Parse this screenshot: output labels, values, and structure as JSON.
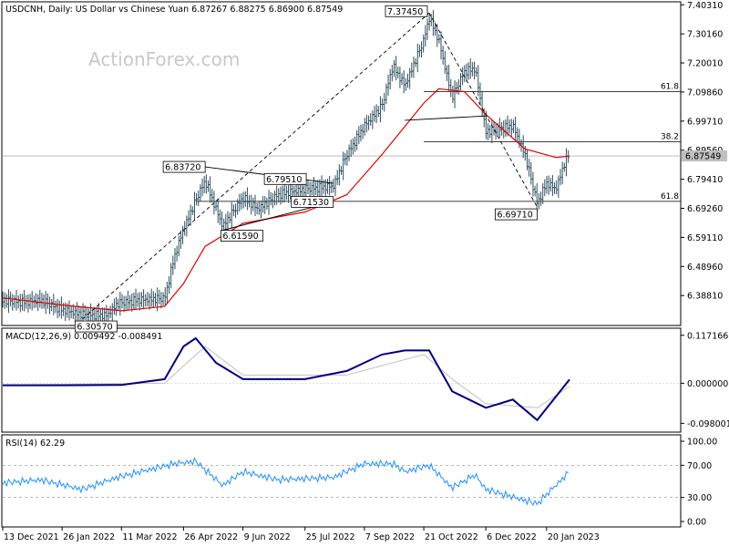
{
  "watermark": "ActionForex.com",
  "chart_data": [
    {
      "panel": "price",
      "type": "candlestick",
      "title": "USDCNH, Daily:  US Dollar vs Chinese Yuan  6.87267 6.88275 6.86900 6.87549",
      "ylim": [
        6.29,
        7.404
      ],
      "y_ticks": [
        "7.40310",
        "7.30160",
        "7.20010",
        "7.09860",
        "6.99710",
        "6.89560",
        "6.79410",
        "6.69260",
        "6.59110",
        "6.48960",
        "6.38810"
      ],
      "last_price": "6.87549",
      "x_ticks": [
        {
          "date": "2021-12-13",
          "label": "13 Dec 2021"
        },
        {
          "date": "2022-01-26",
          "label": "26 Jan 2022"
        },
        {
          "date": "2022-03-11",
          "label": "11 Mar 2022"
        },
        {
          "date": "2022-04-26",
          "label": "26 Apr 2022"
        },
        {
          "date": "2022-06-09",
          "label": "9 Jun 2022"
        },
        {
          "date": "2022-07-25",
          "label": "25 Jul 2022"
        },
        {
          "date": "2022-09-07",
          "label": "7 Sep 2022"
        },
        {
          "date": "2022-10-21",
          "label": "21 Oct 2022"
        },
        {
          "date": "2022-12-06",
          "label": "6 Dec 2022"
        },
        {
          "date": "2023-01-20",
          "label": "20 Jan 2023"
        }
      ],
      "close_series": [
        {
          "date": "2021-12-13",
          "value": 6.372
        },
        {
          "date": "2021-12-30",
          "value": 6.364
        },
        {
          "date": "2022-01-10",
          "value": 6.372
        },
        {
          "date": "2022-01-26",
          "value": 6.338
        },
        {
          "date": "2022-02-10",
          "value": 6.322
        },
        {
          "date": "2022-02-28",
          "value": 6.318
        },
        {
          "date": "2022-03-08",
          "value": 6.36
        },
        {
          "date": "2022-03-23",
          "value": 6.372
        },
        {
          "date": "2022-04-12",
          "value": 6.378
        },
        {
          "date": "2022-04-19",
          "value": 6.52
        },
        {
          "date": "2022-04-26",
          "value": 6.62
        },
        {
          "date": "2022-05-05",
          "value": 6.72
        },
        {
          "date": "2022-05-12",
          "value": 6.79
        },
        {
          "date": "2022-05-20",
          "value": 6.69
        },
        {
          "date": "2022-05-25",
          "value": 6.63
        },
        {
          "date": "2022-06-09",
          "value": 6.73
        },
        {
          "date": "2022-06-20",
          "value": 6.69
        },
        {
          "date": "2022-07-05",
          "value": 6.74
        },
        {
          "date": "2022-07-25",
          "value": 6.76
        },
        {
          "date": "2022-08-15",
          "value": 6.77
        },
        {
          "date": "2022-08-25",
          "value": 6.88
        },
        {
          "date": "2022-09-07",
          "value": 6.98
        },
        {
          "date": "2022-09-20",
          "value": 7.05
        },
        {
          "date": "2022-09-28",
          "value": 7.19
        },
        {
          "date": "2022-10-07",
          "value": 7.12
        },
        {
          "date": "2022-10-21",
          "value": 7.28
        },
        {
          "date": "2022-10-25",
          "value": 7.36
        },
        {
          "date": "2022-11-01",
          "value": 7.28
        },
        {
          "date": "2022-11-11",
          "value": 7.08
        },
        {
          "date": "2022-11-20",
          "value": 7.17
        },
        {
          "date": "2022-11-28",
          "value": 7.18
        },
        {
          "date": "2022-12-06",
          "value": 6.96
        },
        {
          "date": "2022-12-16",
          "value": 6.97
        },
        {
          "date": "2022-12-26",
          "value": 6.98
        },
        {
          "date": "2023-01-04",
          "value": 6.88
        },
        {
          "date": "2023-01-13",
          "value": 6.71
        },
        {
          "date": "2023-01-20",
          "value": 6.78
        },
        {
          "date": "2023-01-27",
          "value": 6.76
        },
        {
          "date": "2023-02-03",
          "value": 6.86
        },
        {
          "date": "2023-02-06",
          "value": 6.875
        }
      ],
      "ma_series": [
        {
          "date": "2021-12-13",
          "value": 6.38
        },
        {
          "date": "2022-01-26",
          "value": 6.355
        },
        {
          "date": "2022-03-11",
          "value": 6.335
        },
        {
          "date": "2022-04-12",
          "value": 6.35
        },
        {
          "date": "2022-04-26",
          "value": 6.43
        },
        {
          "date": "2022-05-12",
          "value": 6.56
        },
        {
          "date": "2022-06-09",
          "value": 6.64
        },
        {
          "date": "2022-07-25",
          "value": 6.68
        },
        {
          "date": "2022-08-25",
          "value": 6.74
        },
        {
          "date": "2022-09-20",
          "value": 6.88
        },
        {
          "date": "2022-10-21",
          "value": 7.06
        },
        {
          "date": "2022-11-01",
          "value": 7.11
        },
        {
          "date": "2022-11-20",
          "value": 7.1
        },
        {
          "date": "2022-12-06",
          "value": 7.02
        },
        {
          "date": "2023-01-04",
          "value": 6.9
        },
        {
          "date": "2023-01-27",
          "value": 6.87
        },
        {
          "date": "2023-02-06",
          "value": 6.875
        }
      ],
      "annotations": [
        {
          "label": "7.37450",
          "date": "2022-10-25",
          "value": 7.3745
        },
        {
          "label": "6.83720",
          "date": "2022-05-12",
          "value": 6.8372
        },
        {
          "label": "6.79510",
          "date": "2022-07-05",
          "value": 6.7951
        },
        {
          "label": "6.71530",
          "date": "2022-07-25",
          "value": 6.7153
        },
        {
          "label": "6.61590",
          "date": "2022-05-25",
          "value": 6.6159
        },
        {
          "label": "6.69710",
          "date": "2023-01-13",
          "value": 6.6971
        },
        {
          "label": "6.30570",
          "date": "2022-02-10",
          "value": 6.3057
        }
      ],
      "fib_levels": [
        {
          "label": "61.8",
          "value": 7.1
        },
        {
          "label": "38.2",
          "value": 6.925
        },
        {
          "label": "61.8",
          "value": 6.717
        }
      ],
      "colors": {
        "candle": "#2f4f5f",
        "ma": "#e00000",
        "lines": "#000000",
        "last_price_bg": "#c0c0c0"
      }
    },
    {
      "panel": "macd",
      "type": "line",
      "title": "MACD(12,26,9) 0.009492 -0.008491",
      "ylim": [
        -0.115,
        0.13
      ],
      "y_ticks": [
        "0.117166",
        "0.000000",
        "-0.098001"
      ],
      "series": [
        {
          "values_by_date": [
            {
              "date": "2021-12-13",
              "value": -0.005
            },
            {
              "date": "2022-01-26",
              "value": -0.005
            },
            {
              "date": "2022-03-11",
              "value": -0.004
            },
            {
              "date": "2022-04-12",
              "value": 0.01
            },
            {
              "date": "2022-04-26",
              "value": 0.09
            },
            {
              "date": "2022-05-05",
              "value": 0.11
            },
            {
              "date": "2022-05-20",
              "value": 0.05
            },
            {
              "date": "2022-06-09",
              "value": 0.01
            },
            {
              "date": "2022-07-25",
              "value": 0.01
            },
            {
              "date": "2022-08-25",
              "value": 0.03
            },
            {
              "date": "2022-09-20",
              "value": 0.07
            },
            {
              "date": "2022-10-07",
              "value": 0.08
            },
            {
              "date": "2022-10-25",
              "value": 0.08
            },
            {
              "date": "2022-11-11",
              "value": -0.02
            },
            {
              "date": "2022-12-06",
              "value": -0.06
            },
            {
              "date": "2022-12-26",
              "value": -0.04
            },
            {
              "date": "2023-01-13",
              "value": -0.09
            },
            {
              "date": "2023-02-06",
              "value": 0.009
            }
          ]
        },
        {
          "values_by_date": [
            {
              "date": "2021-12-13",
              "value": -0.004
            },
            {
              "date": "2022-04-12",
              "value": 0.0
            },
            {
              "date": "2022-05-12",
              "value": 0.09
            },
            {
              "date": "2022-06-09",
              "value": 0.02
            },
            {
              "date": "2022-08-25",
              "value": 0.02
            },
            {
              "date": "2022-10-21",
              "value": 0.07
            },
            {
              "date": "2022-11-11",
              "value": 0.01
            },
            {
              "date": "2022-12-06",
              "value": -0.05
            },
            {
              "date": "2023-01-13",
              "value": -0.06
            },
            {
              "date": "2023-02-06",
              "value": -0.008
            }
          ]
        }
      ],
      "colors": {
        "macd": "#000080",
        "signal": "#c0c0c0"
      }
    },
    {
      "panel": "rsi",
      "type": "line",
      "title": "RSI(14) 62.29",
      "ylim": [
        0,
        100
      ],
      "y_ticks": [
        "100.00",
        "70.00",
        "30.00",
        "0.00"
      ],
      "levels": [
        70,
        30
      ],
      "values_by_date": [
        {
          "date": "2021-12-13",
          "value": 48
        },
        {
          "date": "2022-01-10",
          "value": 52
        },
        {
          "date": "2022-02-10",
          "value": 40
        },
        {
          "date": "2022-03-08",
          "value": 55
        },
        {
          "date": "2022-04-19",
          "value": 72
        },
        {
          "date": "2022-05-05",
          "value": 75
        },
        {
          "date": "2022-05-25",
          "value": 45
        },
        {
          "date": "2022-06-09",
          "value": 62
        },
        {
          "date": "2022-07-05",
          "value": 52
        },
        {
          "date": "2022-08-15",
          "value": 55
        },
        {
          "date": "2022-09-07",
          "value": 72
        },
        {
          "date": "2022-09-28",
          "value": 72
        },
        {
          "date": "2022-10-07",
          "value": 62
        },
        {
          "date": "2022-10-25",
          "value": 70
        },
        {
          "date": "2022-11-11",
          "value": 42
        },
        {
          "date": "2022-11-28",
          "value": 58
        },
        {
          "date": "2022-12-06",
          "value": 40
        },
        {
          "date": "2023-01-13",
          "value": 22
        },
        {
          "date": "2023-02-06",
          "value": 62
        }
      ],
      "colors": {
        "rsi": "#1e90ff",
        "levels": "#a0a0a0"
      }
    }
  ]
}
